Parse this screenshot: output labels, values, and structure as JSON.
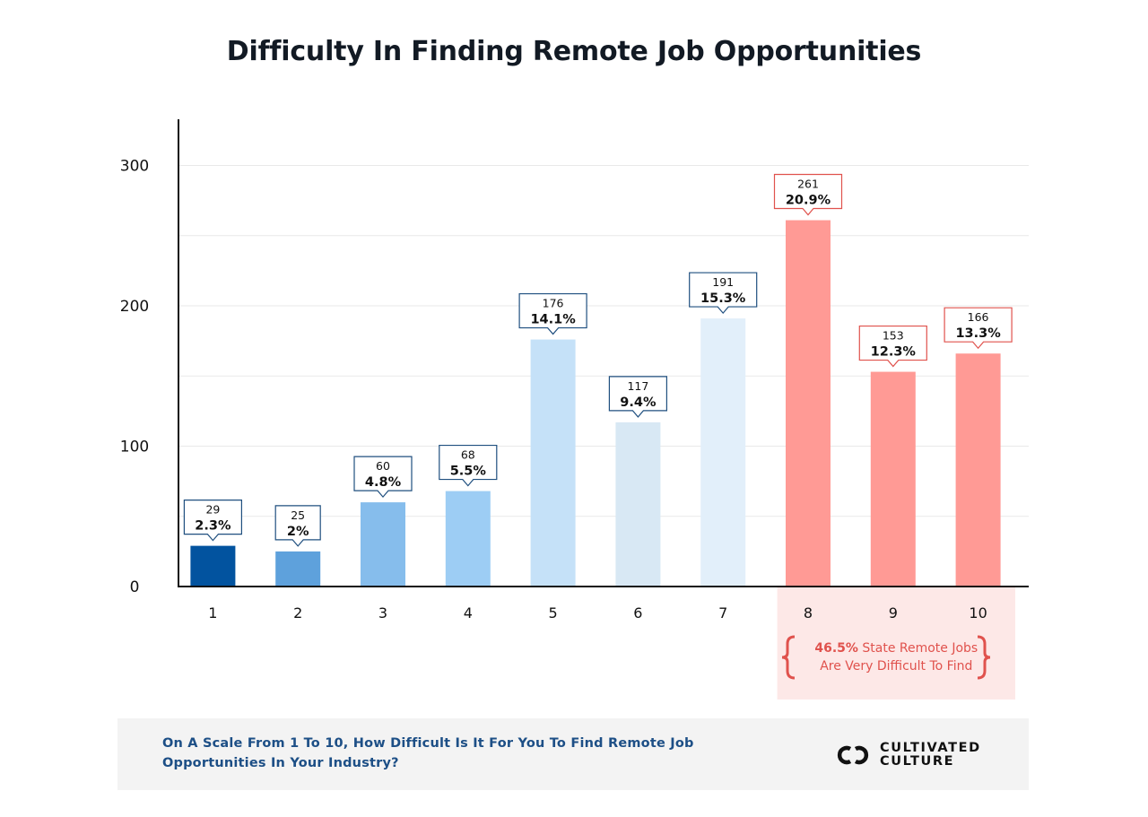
{
  "chart_data": {
    "type": "bar",
    "title": "Difficulty In Finding Remote Job Opportunities",
    "categories": [
      "1",
      "2",
      "3",
      "4",
      "5",
      "6",
      "7",
      "8",
      "9",
      "10"
    ],
    "values": [
      29,
      25,
      60,
      68,
      176,
      117,
      191,
      261,
      153,
      166
    ],
    "percent_labels": [
      "2.3%",
      "2%",
      "4.8%",
      "5.5%",
      "14.1%",
      "9.4%",
      "15.3%",
      "20.9%",
      "12.3%",
      "13.3%"
    ],
    "bar_colors": [
      "#02539f",
      "#5ea1dc",
      "#86bdec",
      "#9dcdf4",
      "#c5e1f8",
      "#d8e8f4",
      "#e2effa",
      "#ff9a95",
      "#ff9a95",
      "#ff9a95"
    ],
    "label_border_colors": [
      "#1f4f7f",
      "#1f4f7f",
      "#1f4f7f",
      "#1f4f7f",
      "#1f4f7f",
      "#1f4f7f",
      "#1f4f7f",
      "#e0524d",
      "#e0524d",
      "#e0524d"
    ],
    "y_ticks": [
      0,
      100,
      200,
      300
    ],
    "ylim": [
      0,
      335
    ],
    "grid": true,
    "highlight": {
      "categories": [
        "8",
        "9",
        "10"
      ],
      "emphasis": "46.5%",
      "text_line1_rest": " State Remote Jobs",
      "text_line2": "Are Very Difficult To Find",
      "accent_color": "#e0524d",
      "background": "#fde8e7"
    }
  },
  "footer": {
    "question": "On A Scale From 1 To 10, How Difficult Is It For You To Find Remote Job Opportunities In Your Industry?",
    "brand_line1": "CULTIVATED",
    "brand_line2": "CULTURE",
    "brand_icon": "infinity-link-icon"
  }
}
